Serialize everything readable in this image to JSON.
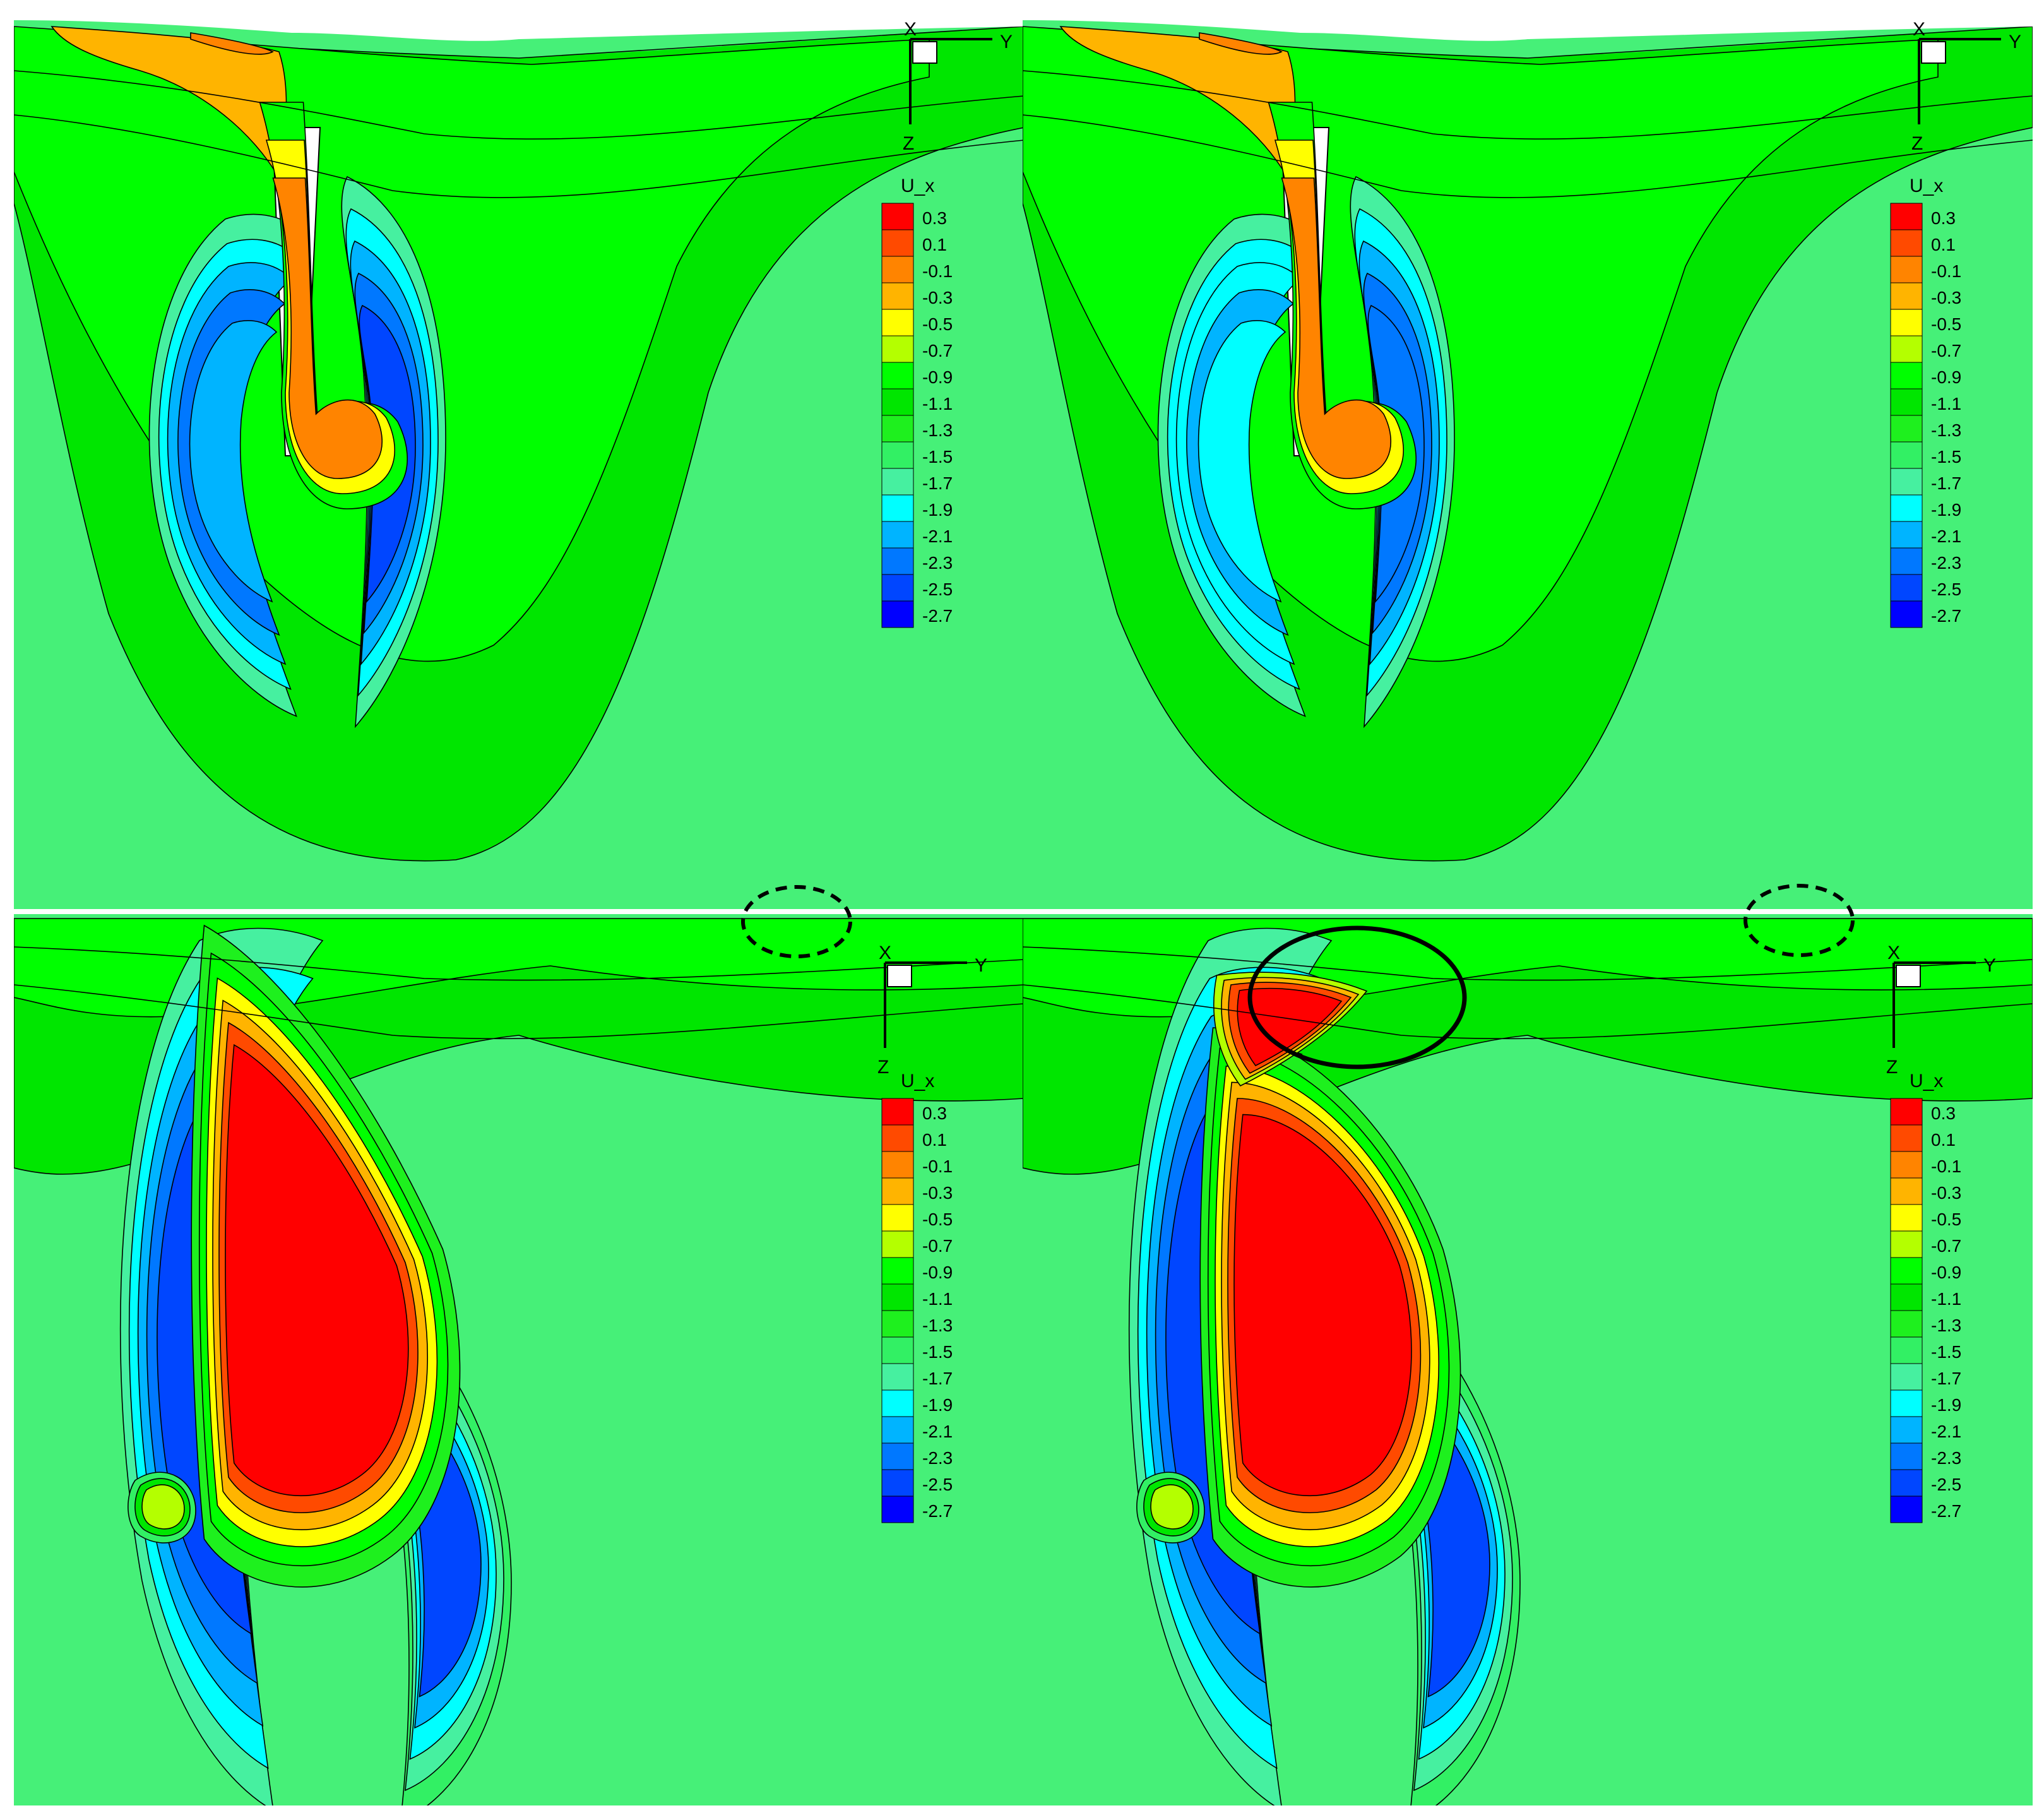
{
  "figure": {
    "panels": [
      {
        "id": "top-left",
        "markers": []
      },
      {
        "id": "top-right",
        "markers": []
      },
      {
        "id": "bottom-left",
        "markers": [
          "dashed-ellipse"
        ]
      },
      {
        "id": "bottom-right",
        "markers": [
          "dashed-ellipse",
          "solid-ellipse"
        ]
      }
    ],
    "axes_labels": {
      "horizontal": "Y",
      "vertical": "Z",
      "out_of_plane": "X"
    }
  },
  "chart_data": {
    "type": "heatmap",
    "title": "",
    "variable": "U_x",
    "legend_title": "U_x",
    "levels": [
      "0.3",
      "0.1",
      "-0.1",
      "-0.3",
      "-0.5",
      "-0.7",
      "-0.9",
      "-1.1",
      "-1.3",
      "-1.5",
      "-1.7",
      "-1.9",
      "-2.1",
      "-2.3",
      "-2.5",
      "-2.7"
    ],
    "level_values": [
      0.3,
      0.1,
      -0.1,
      -0.3,
      -0.5,
      -0.7,
      -0.9,
      -1.1,
      -1.3,
      -1.5,
      -1.7,
      -1.9,
      -2.1,
      -2.3,
      -2.5,
      -2.7
    ],
    "colors": [
      "#ff0000",
      "#ff4a00",
      "#ff8400",
      "#ffb400",
      "#ffff00",
      "#b4ff00",
      "#00ff00",
      "#00e600",
      "#1ef01e",
      "#32f064",
      "#46f0a0",
      "#00ffff",
      "#00b4ff",
      "#0078ff",
      "#0046ff",
      "#0000ff"
    ],
    "background_level": "-1.5",
    "background_color": "#46f078",
    "panel_count": 4,
    "layout": "2x2"
  }
}
